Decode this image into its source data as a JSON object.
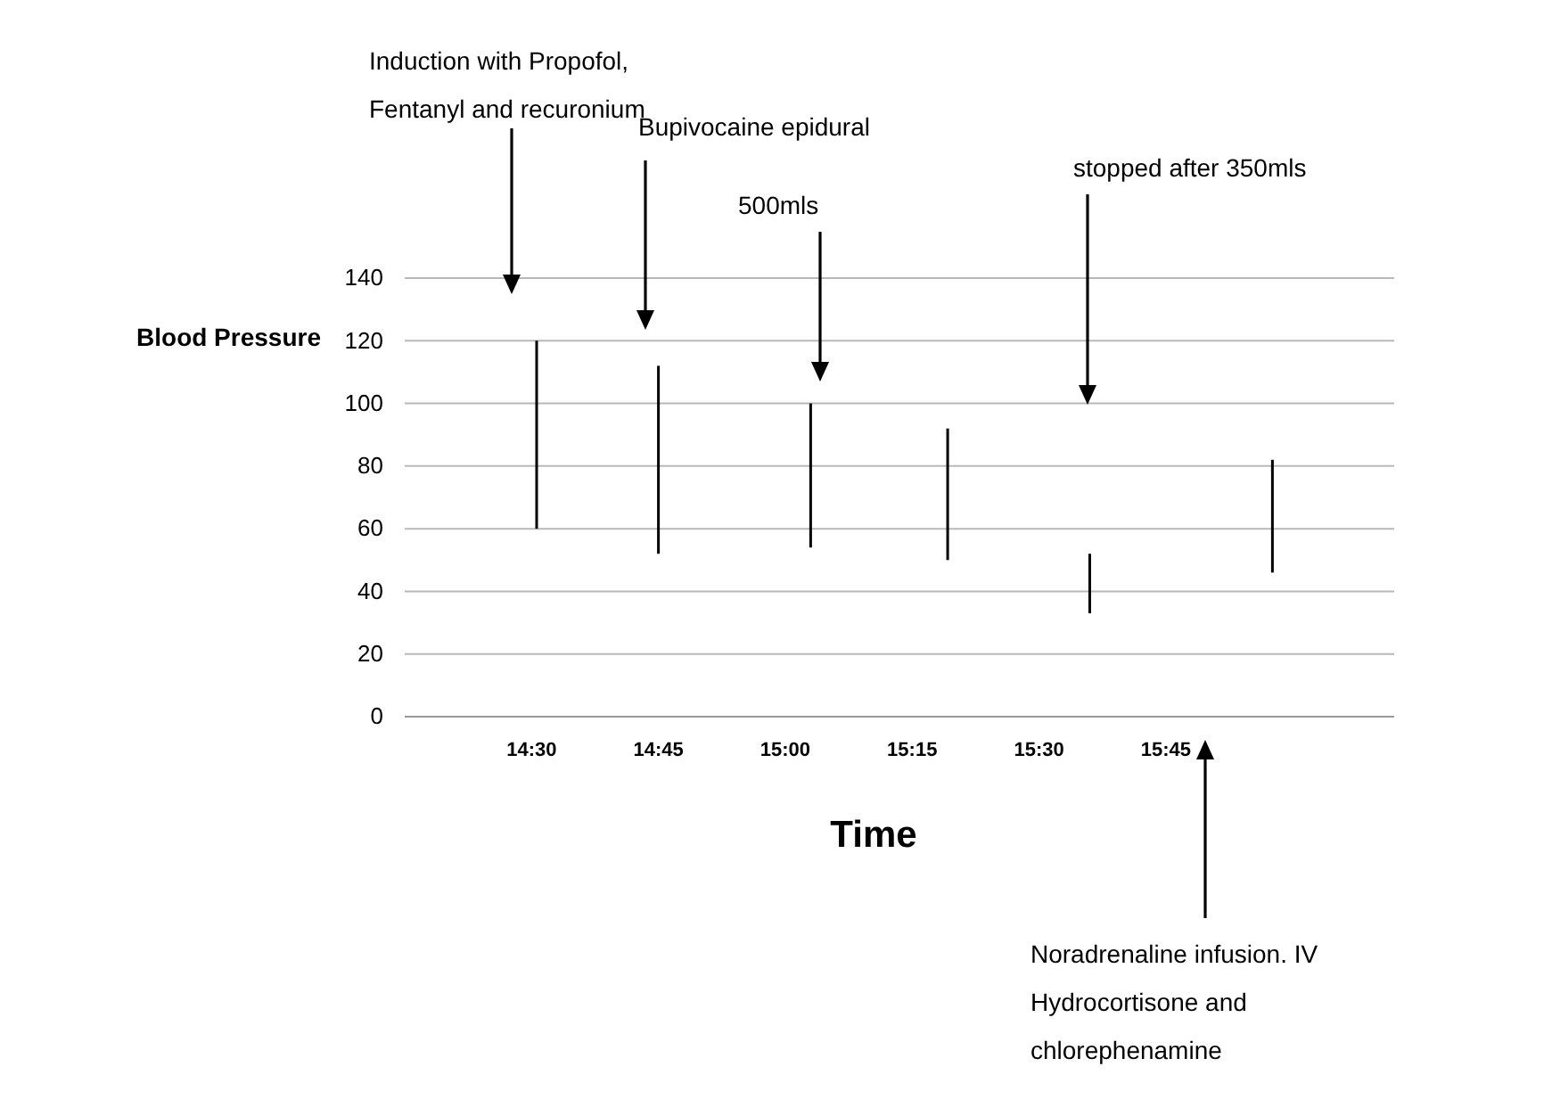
{
  "chart_data": {
    "type": "bar",
    "xlabel": "Time",
    "ylabel": "Blood Pressure",
    "x": [
      14.51,
      14.75,
      15.05,
      15.32,
      15.6,
      15.96
    ],
    "base": [
      60,
      52,
      54,
      50,
      33,
      46
    ],
    "values": [
      60,
      60,
      46,
      42,
      19,
      36
    ],
    "color": "#000000",
    "xlim": [
      14.25,
      16.2
    ],
    "xticks": [
      {
        "value": 14.5,
        "label": "14:30"
      },
      {
        "value": 14.75,
        "label": "14:45"
      },
      {
        "value": 15,
        "label": "15:00"
      },
      {
        "value": 15.25,
        "label": "15:15"
      },
      {
        "value": 15.5,
        "label": "15:30"
      },
      {
        "value": 15.75,
        "label": "15:45"
      }
    ],
    "ylim": [
      0,
      140
    ],
    "yticks": [
      0,
      20,
      40,
      60,
      80,
      100,
      120,
      140
    ],
    "grid": "y",
    "annotations": [
      "Induction with Propofol,\nFentanyl and recuronium",
      "Bupivocaine epidural",
      "500mls",
      "stopped after 350mls",
      "Noradrenaline infusion. IV\nHydrocortisone and\nchlorephenamine"
    ]
  }
}
